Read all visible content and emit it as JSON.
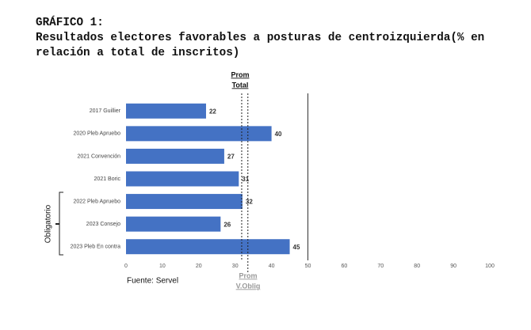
{
  "chart_data": {
    "type": "bar",
    "orientation": "horizontal",
    "title": "GRÁFICO 1:",
    "subtitle": [
      "Resultados electores favorables a posturas de centroizquierda(% en",
      "relación a total de inscritos)"
    ],
    "categories": [
      "2017 Guillier",
      "2020 Pleb Apruebo",
      "2021 Convención",
      "2021 Boric",
      "2022 Pleb Apruebo",
      "2023 Consejo",
      "2023 Pleb En contra"
    ],
    "values": [
      22,
      40,
      27,
      31,
      32,
      26,
      45
    ],
    "color": "#4472c4",
    "xlim": [
      0,
      100
    ],
    "xticks": [
      0,
      10,
      20,
      30,
      40,
      50,
      60,
      70,
      80,
      90,
      100
    ],
    "grid": false,
    "reference_lines": [
      {
        "label": [
          "Prom",
          "Total"
        ],
        "value": 31.8
      },
      {
        "label": [
          "Prom",
          "V.Oblig"
        ],
        "value": 33.5
      }
    ],
    "divider": 50,
    "group_label": "Obligatorio",
    "source": "Fuente: Servel"
  }
}
